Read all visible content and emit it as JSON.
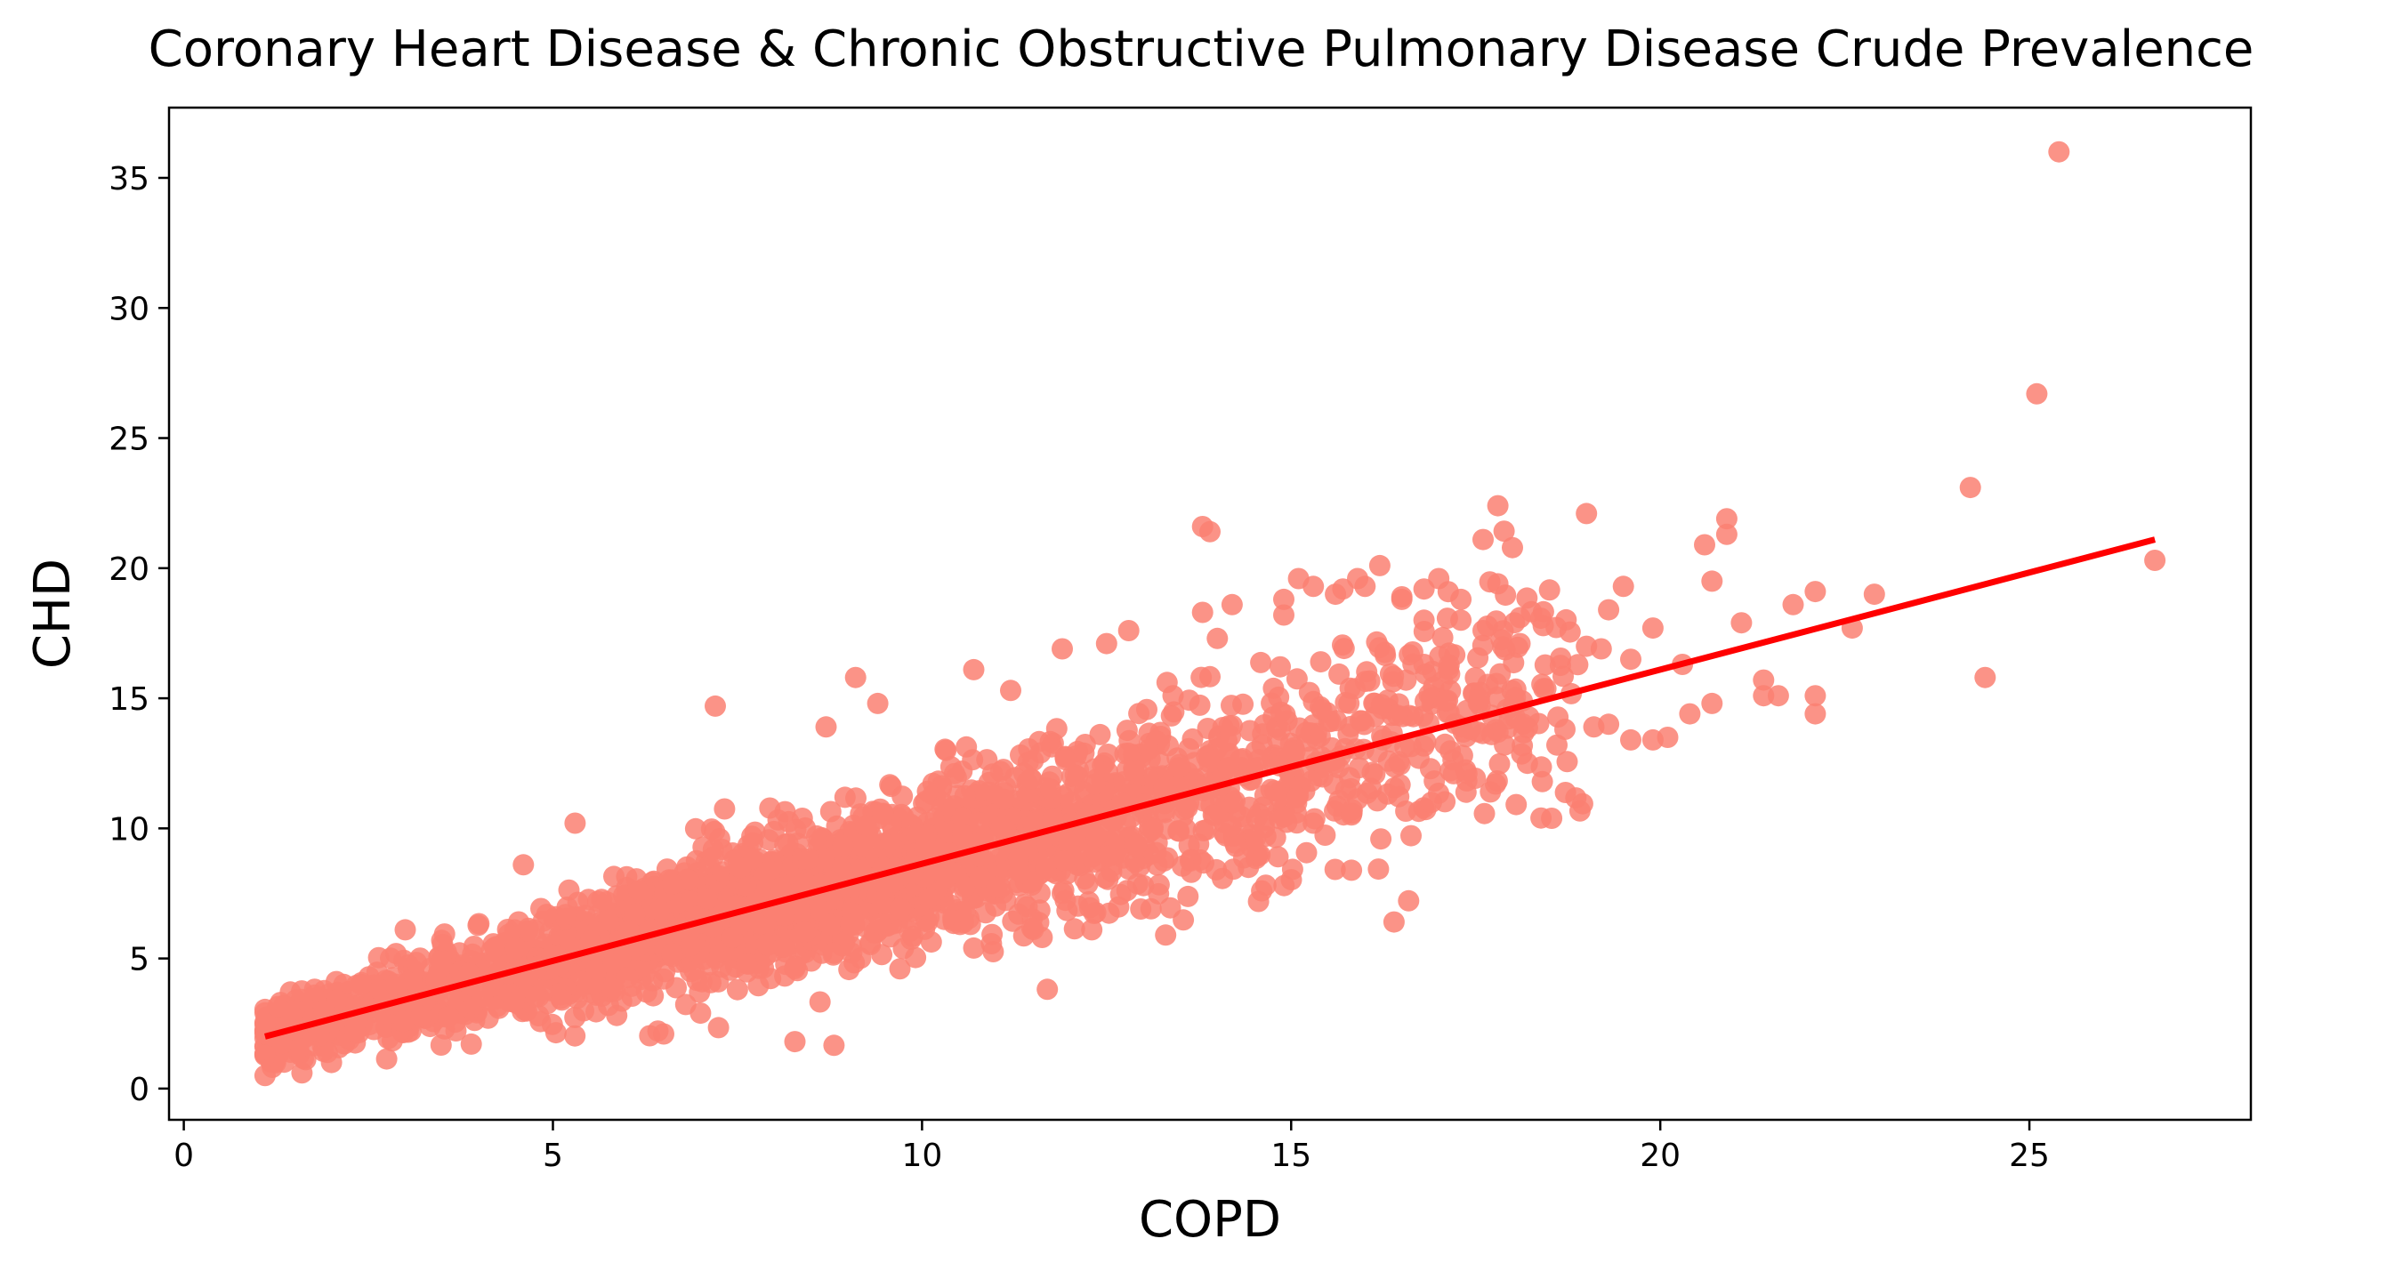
{
  "colors": {
    "points": "#FA8072",
    "regression_line": "#FF0000",
    "axes": "#000000",
    "background": "#FFFFFF"
  },
  "chart_data": {
    "type": "scatter",
    "title": "Coronary Heart Disease & Chronic Obstructive Pulmonary Disease Crude Prevalence",
    "xlabel": "COPD",
    "ylabel": "CHD",
    "xlim": [
      -0.2,
      28.0
    ],
    "ylim": [
      -1.2,
      37.7
    ],
    "xticks": [
      0,
      5,
      10,
      15,
      20,
      25
    ],
    "yticks": [
      0,
      5,
      10,
      15,
      20,
      25,
      30,
      35
    ],
    "grid": false,
    "legend": "none",
    "regression_line": {
      "x": [
        1.1,
        26.7
      ],
      "y": [
        2.0,
        21.1
      ]
    },
    "main_cloud": {
      "description_free_band": true,
      "trend": {
        "x": [
          1.1,
          20.5
        ],
        "y": [
          2.0,
          16.3
        ]
      },
      "x_range": [
        1.1,
        20.5
      ]
    },
    "series": [
      {
        "name": "",
        "points": [
          [
            25.4,
            36.0
          ],
          [
            25.1,
            26.7
          ],
          [
            24.2,
            23.1
          ],
          [
            26.7,
            20.3
          ],
          [
            24.4,
            15.8
          ],
          [
            22.9,
            19.0
          ],
          [
            22.1,
            19.1
          ],
          [
            21.8,
            18.6
          ],
          [
            22.6,
            17.7
          ],
          [
            22.1,
            15.1
          ],
          [
            22.1,
            14.4
          ],
          [
            21.6,
            15.1
          ],
          [
            21.4,
            15.7
          ],
          [
            21.4,
            15.1
          ],
          [
            21.1,
            17.9
          ],
          [
            20.9,
            21.9
          ],
          [
            20.9,
            21.3
          ],
          [
            20.6,
            20.9
          ],
          [
            20.7,
            19.5
          ],
          [
            20.7,
            14.8
          ],
          [
            20.4,
            14.4
          ],
          [
            20.3,
            16.3
          ],
          [
            20.1,
            13.5
          ],
          [
            19.9,
            17.7
          ],
          [
            19.6,
            16.5
          ],
          [
            19.5,
            19.3
          ],
          [
            19.3,
            18.4
          ],
          [
            19.2,
            16.9
          ],
          [
            19.3,
            14.0
          ],
          [
            19.1,
            13.9
          ],
          [
            19.0,
            22.1
          ],
          [
            19.0,
            17.0
          ],
          [
            19.9,
            13.4
          ],
          [
            19.6,
            13.4
          ],
          [
            17.8,
            22.4
          ],
          [
            17.6,
            21.1
          ],
          [
            17.8,
            19.4
          ],
          [
            18.1,
            18.1
          ],
          [
            17.3,
            18.0
          ],
          [
            17.3,
            18.8
          ],
          [
            17.6,
            17.6
          ],
          [
            17.0,
            19.6
          ],
          [
            16.8,
            19.2
          ],
          [
            16.8,
            18.0
          ],
          [
            16.5,
            18.8
          ],
          [
            16.2,
            20.1
          ],
          [
            16.5,
            18.9
          ],
          [
            16.0,
            19.3
          ],
          [
            15.9,
            19.6
          ],
          [
            15.7,
            19.2
          ],
          [
            15.6,
            19.0
          ],
          [
            15.3,
            19.3
          ],
          [
            15.1,
            19.6
          ],
          [
            14.9,
            18.8
          ],
          [
            14.9,
            18.2
          ],
          [
            13.8,
            21.6
          ],
          [
            13.9,
            21.4
          ],
          [
            14.2,
            18.6
          ],
          [
            13.8,
            18.3
          ],
          [
            12.8,
            17.6
          ],
          [
            7.2,
            14.7
          ],
          [
            13.3,
            5.9
          ],
          [
            12.3,
            6.1
          ],
          [
            10.7,
            5.4
          ],
          [
            9.7,
            4.6
          ],
          [
            8.5,
            4.9
          ],
          [
            7.5,
            3.8
          ],
          [
            7.0,
            2.9
          ],
          [
            6.5,
            2.1
          ],
          [
            5.3,
            10.2
          ],
          [
            4.6,
            8.6
          ],
          [
            3.0,
            6.1
          ],
          [
            2.4,
            4.0
          ],
          [
            1.9,
            3.0
          ],
          [
            1.1,
            0.5
          ],
          [
            1.6,
            0.6
          ],
          [
            2.0,
            1.0
          ],
          [
            14.6,
            7.6
          ],
          [
            13.0,
            7.8
          ],
          [
            11.9,
            7.5
          ],
          [
            10.3,
            6.5
          ],
          [
            17.7,
            11.4
          ],
          [
            17.2,
            12.1
          ],
          [
            18.2,
            12.5
          ],
          [
            18.6,
            13.2
          ],
          [
            16.9,
            11.0
          ],
          [
            15.3,
            10.2
          ],
          [
            9.1,
            15.8
          ],
          [
            10.7,
            16.1
          ],
          [
            11.9,
            16.9
          ],
          [
            12.5,
            17.1
          ],
          [
            14.0,
            17.3
          ],
          [
            15.4,
            16.4
          ],
          [
            16.8,
            16.3
          ],
          [
            18.1,
            17.1
          ],
          [
            17.1,
            14.9
          ],
          [
            13.4,
            15.1
          ],
          [
            11.2,
            15.3
          ],
          [
            9.4,
            14.8
          ],
          [
            8.7,
            13.9
          ]
        ]
      }
    ]
  }
}
